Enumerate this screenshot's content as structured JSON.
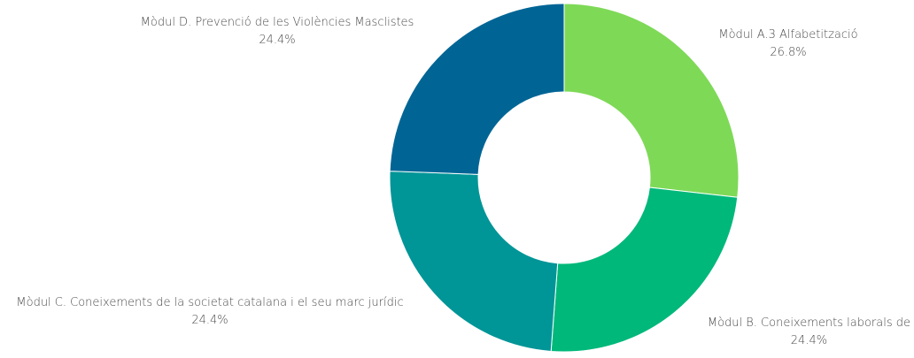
{
  "chart_data": {
    "type": "pie",
    "donut": true,
    "title": "",
    "slices": [
      {
        "label": "Mòdul A.3 Alfabetització",
        "value": 26.8,
        "value_label": "26.8%",
        "color": "#7ed957"
      },
      {
        "label": "Mòdul B. Coneixements laborals de",
        "value": 24.4,
        "value_label": "24.4%",
        "color": "#00b87a"
      },
      {
        "label": "Mòdul C. Coneixements de la societat catalana i el seu marc jurídic",
        "value": 24.4,
        "value_label": "24.4%",
        "color": "#009597"
      },
      {
        "label": "Mòdul D. Prevenció de les Violències Masclistes",
        "value": 24.4,
        "value_label": "24.4%",
        "color": "#006595"
      }
    ],
    "start_angle_deg": 0,
    "direction": "clockwise"
  }
}
